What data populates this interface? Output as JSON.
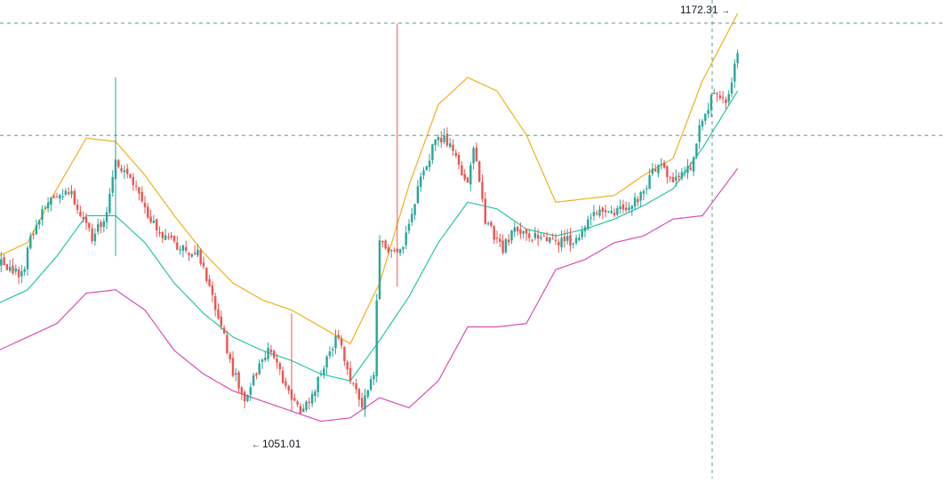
{
  "chart_data": {
    "type": "candlestick",
    "indicator": "Bollinger Bands",
    "annotations": {
      "high_label": "1172.31",
      "low_label": "1051.01",
      "high_arrow": "→",
      "low_arrow": "←"
    },
    "y_range": [
      1038,
      1180
    ],
    "crosshair": {
      "price": 1139.8
    },
    "colors": {
      "background": "#ffffff",
      "up": "#26a69a",
      "down": "#ef5350",
      "upper_band": "#f2b01e",
      "middle_band": "#26c6a6",
      "lower_band": "#d64fb8",
      "crosshair": "#5b9c8e"
    },
    "anchors": {
      "close": [
        [
          0,
          1103
        ],
        [
          4,
          1100
        ],
        [
          8,
          1098
        ],
        [
          11,
          1109
        ],
        [
          14,
          1116
        ],
        [
          18,
          1121
        ],
        [
          21,
          1123
        ],
        [
          25,
          1122
        ],
        [
          28,
          1117
        ],
        [
          32,
          1110
        ],
        [
          36,
          1114
        ],
        [
          40,
          1132
        ],
        [
          44,
          1128
        ],
        [
          48,
          1122
        ],
        [
          52,
          1115
        ],
        [
          56,
          1110
        ],
        [
          60,
          1108
        ],
        [
          64,
          1106
        ],
        [
          68,
          1105
        ],
        [
          72,
          1094
        ],
        [
          76,
          1083
        ],
        [
          80,
          1070
        ],
        [
          84,
          1062
        ],
        [
          88,
          1070
        ],
        [
          92,
          1077
        ],
        [
          96,
          1070
        ],
        [
          100,
          1061
        ],
        [
          104,
          1058
        ],
        [
          108,
          1064
        ],
        [
          112,
          1075
        ],
        [
          116,
          1080
        ],
        [
          120,
          1067
        ],
        [
          124,
          1060
        ],
        [
          128,
          1069
        ],
        [
          130,
          1110
        ],
        [
          134,
          1105
        ],
        [
          138,
          1107
        ],
        [
          140,
          1113
        ],
        [
          144,
          1127
        ],
        [
          148,
          1136
        ],
        [
          152,
          1140
        ],
        [
          156,
          1133
        ],
        [
          160,
          1126
        ],
        [
          162,
          1136
        ],
        [
          166,
          1115
        ],
        [
          170,
          1108
        ],
        [
          172,
          1106
        ],
        [
          176,
          1112
        ],
        [
          180,
          1110
        ],
        [
          184,
          1110
        ],
        [
          188,
          1108
        ],
        [
          192,
          1108
        ],
        [
          196,
          1109
        ],
        [
          200,
          1113
        ],
        [
          204,
          1118
        ],
        [
          208,
          1116
        ],
        [
          212,
          1118
        ],
        [
          216,
          1120
        ],
        [
          220,
          1122
        ],
        [
          223,
          1130
        ],
        [
          226,
          1130
        ],
        [
          230,
          1126
        ],
        [
          232,
          1128
        ],
        [
          236,
          1130
        ],
        [
          240,
          1145
        ],
        [
          244,
          1152
        ],
        [
          248,
          1150
        ],
        [
          250,
          1157
        ],
        [
          252,
          1165
        ]
      ],
      "mid": [
        [
          0,
          1090
        ],
        [
          10,
          1094
        ],
        [
          20,
          1104
        ],
        [
          30,
          1116
        ],
        [
          40,
          1116
        ],
        [
          50,
          1108
        ],
        [
          60,
          1096
        ],
        [
          70,
          1087
        ],
        [
          80,
          1080
        ],
        [
          90,
          1076
        ],
        [
          100,
          1073
        ],
        [
          110,
          1069
        ],
        [
          120,
          1067
        ],
        [
          130,
          1079
        ],
        [
          140,
          1092
        ],
        [
          150,
          1108
        ],
        [
          160,
          1120
        ],
        [
          170,
          1118
        ],
        [
          180,
          1112
        ],
        [
          190,
          1110
        ],
        [
          200,
          1112
        ],
        [
          210,
          1115
        ],
        [
          220,
          1119
        ],
        [
          230,
          1124
        ],
        [
          240,
          1136
        ],
        [
          252,
          1153
        ]
      ],
      "width": [
        [
          0,
          14
        ],
        [
          10,
          14
        ],
        [
          20,
          20
        ],
        [
          30,
          23
        ],
        [
          40,
          22
        ],
        [
          50,
          20
        ],
        [
          60,
          20
        ],
        [
          70,
          18
        ],
        [
          80,
          16
        ],
        [
          90,
          15
        ],
        [
          100,
          15
        ],
        [
          110,
          14
        ],
        [
          120,
          11
        ],
        [
          130,
          17
        ],
        [
          140,
          33
        ],
        [
          150,
          41
        ],
        [
          160,
          37
        ],
        [
          170,
          35
        ],
        [
          180,
          28
        ],
        [
          190,
          10
        ],
        [
          200,
          9
        ],
        [
          210,
          7
        ],
        [
          220,
          9
        ],
        [
          230,
          9
        ],
        [
          240,
          20
        ],
        [
          252,
          23
        ]
      ],
      "spikes": [
        [
          136,
          1173,
          1095
        ],
        [
          40,
          1157,
          1104
        ],
        [
          0,
          1094,
          1079
        ],
        [
          100,
          1087,
          1058
        ]
      ]
    }
  }
}
